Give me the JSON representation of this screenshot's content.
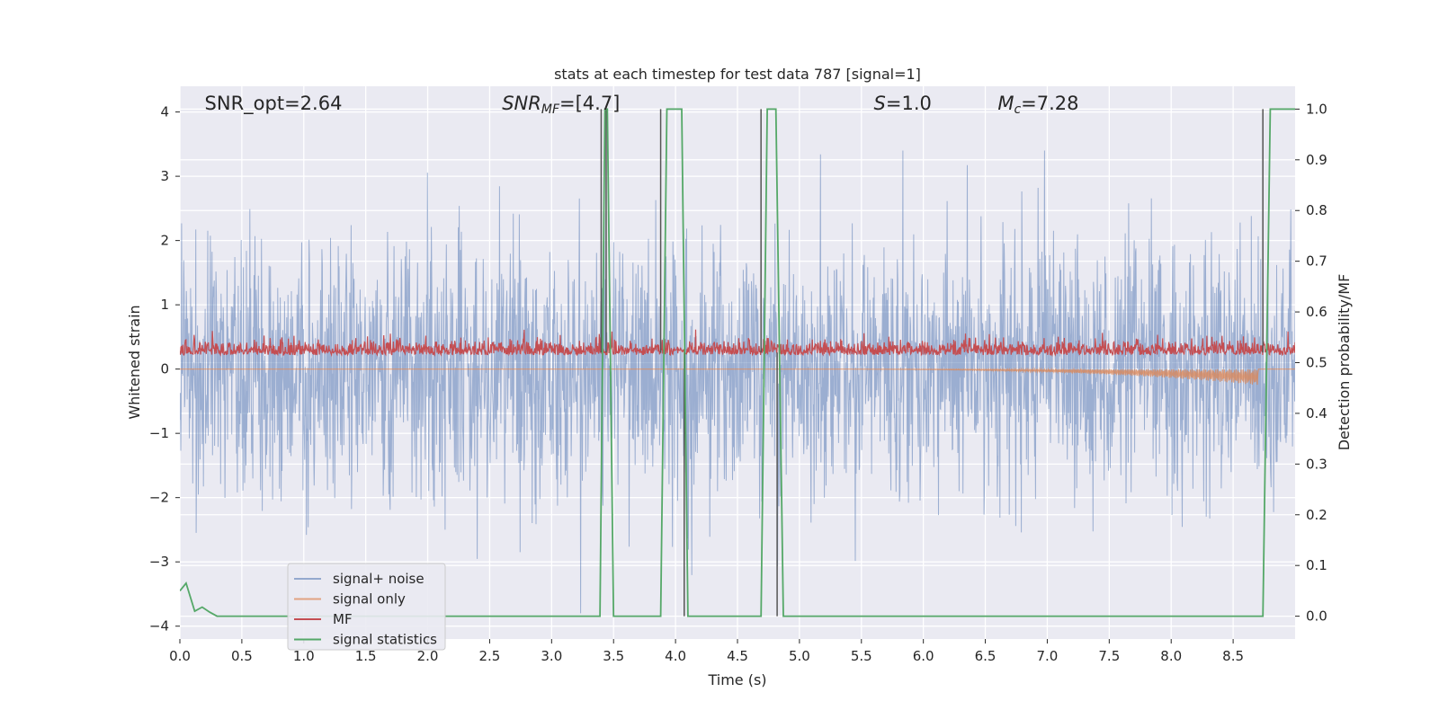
{
  "chart_data": {
    "type": "line",
    "title": "stats at each timestep for test data 787 [signal=1]",
    "xlabel": "Time (s)",
    "ylabel": "Whitened strain",
    "y2label": "Detection probability/MF",
    "xlim": [
      0.0,
      9.0
    ],
    "ylim": [
      -4.2,
      4.4
    ],
    "y2lim": [
      -0.045,
      1.045
    ],
    "x_ticks": [
      "0.0",
      "0.5",
      "1.0",
      "1.5",
      "2.0",
      "2.5",
      "3.0",
      "3.5",
      "4.0",
      "4.5",
      "5.0",
      "5.5",
      "6.0",
      "6.5",
      "7.0",
      "7.5",
      "8.0",
      "8.5"
    ],
    "y_ticks": [
      "4",
      "3",
      "2",
      "1",
      "0",
      "−1",
      "−2",
      "−3",
      "−4"
    ],
    "y2_ticks": [
      "1.0",
      "0.9",
      "0.8",
      "0.7",
      "0.6",
      "0.5",
      "0.4",
      "0.3",
      "0.2",
      "0.1",
      "0.0"
    ],
    "annotations": [
      {
        "text": "SNR_opt=2.64",
        "x": 0.2
      },
      {
        "text": "SNR",
        "sub": "MF",
        "suffix": "=[4.7]",
        "x": 2.6
      },
      {
        "text": "S",
        "suffix": "=1.0",
        "x": 5.6
      },
      {
        "text": "M",
        "sub": "c",
        "suffix": "=7.28",
        "x": 6.6
      }
    ],
    "legend": {
      "position": "lower-left",
      "entries": [
        "signal+ noise",
        "signal only",
        "MF",
        "signal statistics"
      ]
    },
    "colors": {
      "signal_noise": "#4c72b0",
      "signal_only": "#dd8452",
      "mf": "#c44e52",
      "statistics": "#55a868",
      "background": "#eaeaf2",
      "grid": "#ffffff"
    },
    "series": [
      {
        "name": "signal+ noise",
        "axis": "left",
        "description_range": [
          -3.8,
          3.4
        ]
      },
      {
        "name": "signal only",
        "axis": "left",
        "chirp_start": 4.7,
        "chirp_end": 8.7,
        "peak_amplitude": -0.25
      },
      {
        "name": "MF",
        "axis": "right",
        "mean": 0.52,
        "range": [
          0.49,
          0.6
        ]
      },
      {
        "name": "signal statistics",
        "axis": "right",
        "x": [
          0.0,
          0.05,
          0.12,
          0.18,
          0.24,
          0.3,
          3.39,
          3.43,
          3.45,
          3.5,
          3.88,
          3.93,
          4.05,
          4.1,
          4.69,
          4.74,
          4.81,
          4.87,
          8.74,
          8.8,
          8.86,
          9.0
        ],
        "y": [
          0.05,
          0.065,
          0.01,
          0.018,
          0.008,
          0.0,
          0.0,
          1.0,
          1.0,
          0.0,
          0.0,
          1.0,
          1.0,
          0.0,
          0.0,
          1.0,
          1.0,
          0.0,
          0.0,
          1.0,
          1.0,
          1.0
        ]
      }
    ],
    "mf_spikes": [
      {
        "x": 3.4,
        "y": 1.0
      },
      {
        "x": 3.44,
        "y": 1.0
      },
      {
        "x": 3.88,
        "y": 1.0
      },
      {
        "x": 4.07,
        "y": 0.0
      },
      {
        "x": 4.69,
        "y": 1.0
      },
      {
        "x": 4.82,
        "y": 0.0
      },
      {
        "x": 8.74,
        "y": 1.0
      }
    ]
  }
}
